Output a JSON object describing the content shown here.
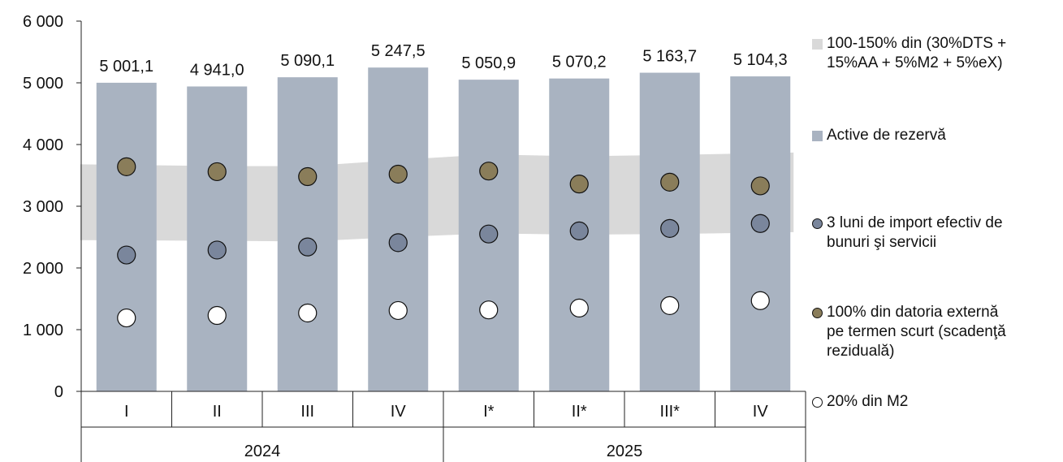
{
  "chart_data": {
    "type": "bar",
    "title": "",
    "xlabel": "",
    "ylabel": "",
    "ylim": [
      0,
      6000
    ],
    "yticks": [
      0,
      1000,
      2000,
      3000,
      4000,
      5000,
      6000
    ],
    "ytick_labels": [
      "0",
      "1 000",
      "2 000",
      "3 000",
      "4 000",
      "5 000",
      "6 000"
    ],
    "grid": false,
    "legend_position": "right",
    "categories": [
      "I",
      "II",
      "III",
      "IV",
      "I*",
      "II*",
      "III*",
      "IV"
    ],
    "groups": [
      {
        "label": "2024",
        "count": 4
      },
      {
        "label": "2025",
        "count": 4
      }
    ],
    "series": [
      {
        "name": "Active de rezervă",
        "kind": "bar",
        "color": "#a9b3c1",
        "values": [
          5001.1,
          4941.0,
          5090.1,
          5247.5,
          5050.9,
          5070.2,
          5163.7,
          5104.3
        ],
        "value_labels": [
          "5 001,1",
          "4 941,0",
          "5 090,1",
          "5 247,5",
          "5 050,9",
          "5 070,2",
          "5 163,7",
          "5 104,3"
        ]
      },
      {
        "name": "100-150% din (30%DTS + 15%AA + 5%M2 + 5%eX)",
        "kind": "band",
        "color": "#d9d9d9",
        "lower": [
          2450,
          2440,
          2430,
          2500,
          2560,
          2540,
          2550,
          2580
        ],
        "upper": [
          3680,
          3650,
          3650,
          3750,
          3840,
          3810,
          3830,
          3870
        ]
      },
      {
        "name": "3 luni de import efectiv de bunuri şi servicii",
        "kind": "scatter",
        "color": "#7a869c",
        "values": [
          2210,
          2290,
          2340,
          2410,
          2550,
          2600,
          2640,
          2720
        ]
      },
      {
        "name": "100% din datoria externă pe termen scurt (scadenţă reziduală)",
        "kind": "scatter",
        "color": "#8a7d5a",
        "values": [
          3640,
          3560,
          3480,
          3520,
          3570,
          3360,
          3390,
          3330
        ]
      },
      {
        "name": "20% din M2",
        "kind": "scatter",
        "color": "#ffffff",
        "values": [
          1190,
          1230,
          1270,
          1310,
          1320,
          1350,
          1390,
          1470
        ]
      }
    ]
  },
  "legend": [
    {
      "label": "100-150% din (30%DTS +\n15%AA + 5%M2 + 5%eX)",
      "symbol": "square",
      "color": "#d9d9d9"
    },
    {
      "label": "Active de rezervă",
      "symbol": "square",
      "color": "#a9b3c1"
    },
    {
      "label": "3 luni de import efectiv de\nbunuri şi servicii",
      "symbol": "circle",
      "color": "#7a869c"
    },
    {
      "label": "100% din datoria externă\npe termen scurt (scadenţă\nreziduală)",
      "symbol": "circle",
      "color": "#8a7d5a"
    },
    {
      "label": "20% din M2",
      "symbol": "circle",
      "color": "#ffffff"
    }
  ]
}
